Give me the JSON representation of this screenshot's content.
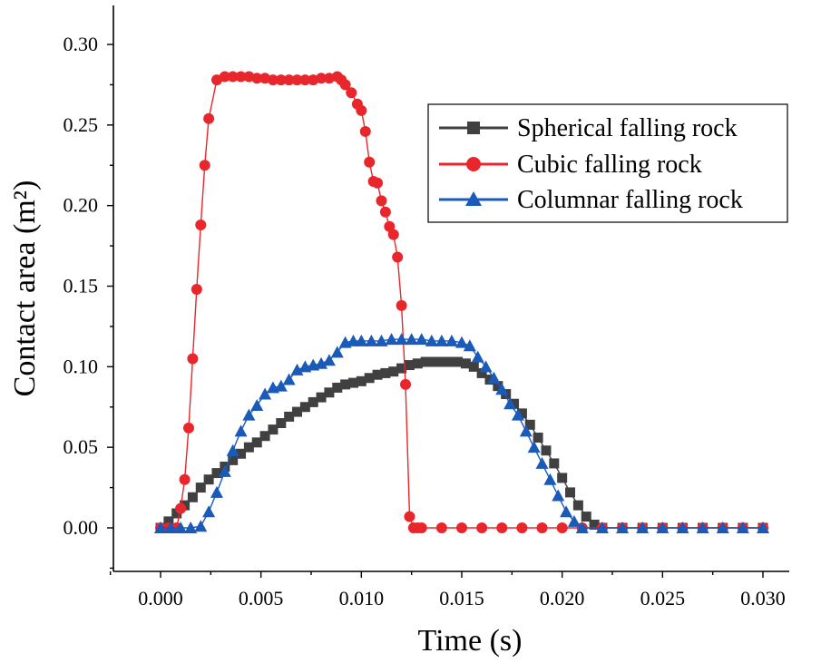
{
  "chart_data": {
    "type": "line",
    "title": "",
    "xlabel": "Time (s)",
    "ylabel": "Contact area (m²)",
    "xlim": [
      -0.002,
      0.032
    ],
    "ylim": [
      -0.026,
      0.325
    ],
    "x_ticks": [
      0.0,
      0.005,
      0.01,
      0.015,
      0.02,
      0.025,
      0.03
    ],
    "x_tick_labels": [
      "0.000",
      "0.005",
      "0.010",
      "0.015",
      "0.020",
      "0.025",
      "0.030"
    ],
    "y_ticks": [
      0.0,
      0.05,
      0.1,
      0.15,
      0.2,
      0.25,
      0.3
    ],
    "y_tick_labels": [
      "0.00",
      "0.05",
      "0.10",
      "0.15",
      "0.20",
      "0.25",
      "0.30"
    ],
    "grid": false,
    "legend_position": "top-right",
    "series": [
      {
        "name": "Spherical falling rock",
        "color": "#404040",
        "marker": "square",
        "x": [
          0.0,
          0.0004,
          0.0008,
          0.0012,
          0.0016,
          0.002,
          0.0024,
          0.0028,
          0.0032,
          0.0036,
          0.004,
          0.0044,
          0.0048,
          0.0052,
          0.0056,
          0.006,
          0.0064,
          0.0068,
          0.0072,
          0.0076,
          0.008,
          0.0084,
          0.0088,
          0.0092,
          0.0096,
          0.01,
          0.0104,
          0.0108,
          0.0112,
          0.0116,
          0.012,
          0.0124,
          0.0128,
          0.0132,
          0.0136,
          0.014,
          0.0144,
          0.0148,
          0.0152,
          0.0156,
          0.016,
          0.0164,
          0.0168,
          0.0172,
          0.0176,
          0.018,
          0.0184,
          0.0188,
          0.0192,
          0.0196,
          0.02,
          0.0204,
          0.0208,
          0.0212,
          0.0216,
          0.022,
          0.023,
          0.024,
          0.025,
          0.026,
          0.027,
          0.028,
          0.029,
          0.03
        ],
        "y": [
          0.0,
          0.004,
          0.009,
          0.014,
          0.019,
          0.025,
          0.03,
          0.034,
          0.038,
          0.042,
          0.046,
          0.05,
          0.053,
          0.057,
          0.061,
          0.065,
          0.069,
          0.072,
          0.075,
          0.078,
          0.081,
          0.084,
          0.087,
          0.089,
          0.09,
          0.091,
          0.093,
          0.095,
          0.096,
          0.097,
          0.099,
          0.101,
          0.102,
          0.103,
          0.103,
          0.103,
          0.103,
          0.103,
          0.102,
          0.1,
          0.096,
          0.092,
          0.088,
          0.083,
          0.077,
          0.071,
          0.064,
          0.056,
          0.048,
          0.04,
          0.031,
          0.022,
          0.014,
          0.007,
          0.002,
          0.0,
          0.0,
          0.0,
          0.0,
          0.0,
          0.0,
          0.0,
          0.0,
          0.0
        ]
      },
      {
        "name": "Cubic falling rock",
        "color": "#e8262b",
        "marker": "circle",
        "x": [
          0.0,
          0.0004,
          0.0008,
          0.001,
          0.0012,
          0.0014,
          0.0016,
          0.0018,
          0.002,
          0.0022,
          0.0024,
          0.0028,
          0.0032,
          0.0036,
          0.004,
          0.0044,
          0.0048,
          0.0052,
          0.0056,
          0.006,
          0.0064,
          0.0068,
          0.0072,
          0.0076,
          0.008,
          0.0084,
          0.0088,
          0.009,
          0.0092,
          0.0095,
          0.0098,
          0.01,
          0.0102,
          0.0104,
          0.0106,
          0.0108,
          0.011,
          0.0112,
          0.0114,
          0.0116,
          0.0118,
          0.012,
          0.0122,
          0.0124,
          0.0126,
          0.0128,
          0.013,
          0.014,
          0.015,
          0.016,
          0.017,
          0.018,
          0.019,
          0.02,
          0.021,
          0.022,
          0.023,
          0.024,
          0.025,
          0.026,
          0.027,
          0.028,
          0.029,
          0.03
        ],
        "y": [
          0.0,
          0.0,
          0.0,
          0.012,
          0.03,
          0.062,
          0.105,
          0.148,
          0.188,
          0.225,
          0.254,
          0.278,
          0.28,
          0.28,
          0.28,
          0.28,
          0.279,
          0.279,
          0.278,
          0.278,
          0.278,
          0.278,
          0.278,
          0.278,
          0.279,
          0.279,
          0.28,
          0.278,
          0.275,
          0.27,
          0.263,
          0.259,
          0.246,
          0.227,
          0.215,
          0.214,
          0.203,
          0.196,
          0.187,
          0.182,
          0.168,
          0.138,
          0.089,
          0.007,
          0.0,
          0.0,
          0.0,
          0.0,
          0.0,
          0.0,
          0.0,
          0.0,
          0.0,
          0.0,
          0.0,
          0.0,
          0.0,
          0.0,
          0.0,
          0.0,
          0.0,
          0.0,
          0.0,
          0.0
        ]
      },
      {
        "name": "Columnar falling rock",
        "color": "#1a5ab8",
        "marker": "triangle",
        "x": [
          0.0,
          0.0005,
          0.001,
          0.0015,
          0.002,
          0.0024,
          0.0028,
          0.0032,
          0.0036,
          0.004,
          0.0044,
          0.0048,
          0.0052,
          0.0056,
          0.006,
          0.0064,
          0.0068,
          0.0072,
          0.0076,
          0.008,
          0.0084,
          0.0088,
          0.0092,
          0.0096,
          0.01,
          0.0105,
          0.011,
          0.0115,
          0.012,
          0.0125,
          0.013,
          0.0135,
          0.014,
          0.0145,
          0.015,
          0.0154,
          0.0158,
          0.0162,
          0.0166,
          0.017,
          0.0174,
          0.0178,
          0.0182,
          0.0186,
          0.019,
          0.0194,
          0.0198,
          0.0202,
          0.0206,
          0.021,
          0.022,
          0.023,
          0.024,
          0.025,
          0.026,
          0.027,
          0.028,
          0.029,
          0.03
        ],
        "y": [
          0.0,
          0.0,
          0.0,
          0.0,
          0.001,
          0.01,
          0.022,
          0.035,
          0.048,
          0.06,
          0.07,
          0.076,
          0.083,
          0.087,
          0.088,
          0.092,
          0.098,
          0.1,
          0.101,
          0.102,
          0.104,
          0.109,
          0.115,
          0.116,
          0.116,
          0.116,
          0.116,
          0.117,
          0.117,
          0.117,
          0.117,
          0.116,
          0.116,
          0.116,
          0.115,
          0.113,
          0.106,
          0.1,
          0.093,
          0.086,
          0.077,
          0.07,
          0.06,
          0.05,
          0.04,
          0.03,
          0.02,
          0.01,
          0.004,
          0.0,
          0.0,
          0.0,
          0.0,
          0.0,
          0.0,
          0.0,
          0.0,
          0.0,
          0.0
        ]
      }
    ]
  }
}
